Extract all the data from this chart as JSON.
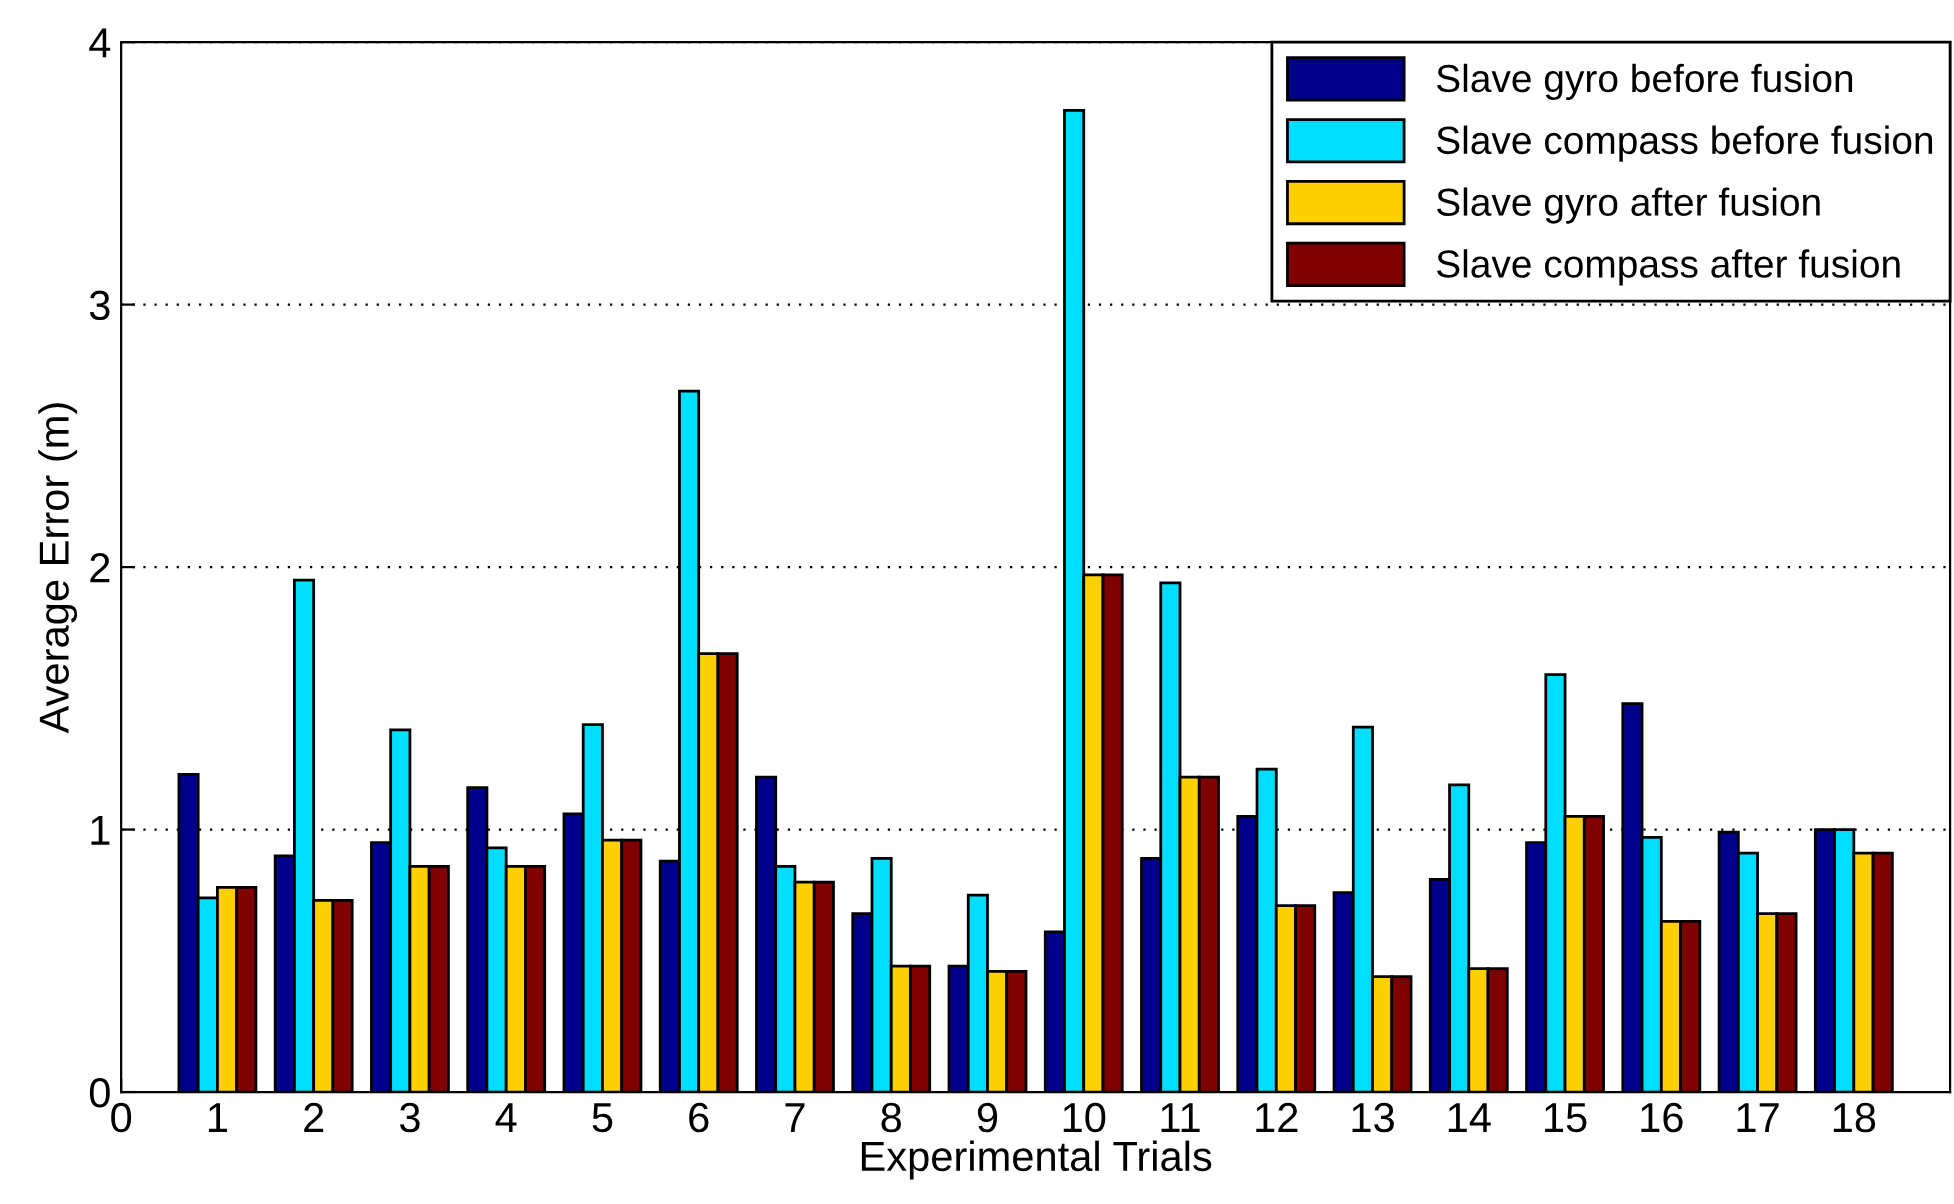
{
  "chart_data": {
    "type": "bar",
    "xlabel": "Experimental Trials",
    "ylabel": "Average Error (m)",
    "x": [
      1,
      2,
      3,
      4,
      5,
      6,
      7,
      8,
      9,
      10,
      11,
      12,
      13,
      14,
      15,
      16,
      17,
      18
    ],
    "series": [
      {
        "name": "Slave gyro before fusion",
        "color": "#00008b",
        "values": [
          1.21,
          0.9,
          0.95,
          1.16,
          1.06,
          0.88,
          1.2,
          0.68,
          0.48,
          0.61,
          0.89,
          1.05,
          0.76,
          0.81,
          0.95,
          1.48,
          0.99,
          1.0
        ]
      },
      {
        "name": "Slave compass before fusion",
        "color": "#00ddff",
        "values": [
          0.74,
          1.95,
          1.38,
          0.93,
          1.4,
          2.67,
          0.86,
          0.89,
          0.75,
          3.74,
          1.94,
          1.23,
          1.39,
          1.17,
          1.59,
          0.97,
          0.91,
          1.0
        ]
      },
      {
        "name": "Slave gyro after fusion",
        "color": "#ffd000",
        "values": [
          0.78,
          0.73,
          0.86,
          0.86,
          0.96,
          1.67,
          0.8,
          0.48,
          0.46,
          1.97,
          1.2,
          0.71,
          0.44,
          0.47,
          1.05,
          0.65,
          0.68,
          0.91
        ]
      },
      {
        "name": "Slave compass after fusion",
        "color": "#800000",
        "values": [
          0.78,
          0.73,
          0.86,
          0.86,
          0.96,
          1.67,
          0.8,
          0.48,
          0.46,
          1.97,
          1.2,
          0.71,
          0.44,
          0.47,
          1.05,
          0.65,
          0.68,
          0.91
        ]
      }
    ],
    "xlim": [
      0,
      19
    ],
    "xticks": [
      0,
      1,
      2,
      3,
      4,
      5,
      6,
      7,
      8,
      9,
      10,
      11,
      12,
      13,
      14,
      15,
      16,
      17,
      18
    ],
    "ylim": [
      0,
      4
    ],
    "yticks": [
      0,
      1,
      2,
      3,
      4
    ],
    "grid": "y",
    "legend": "top right"
  }
}
